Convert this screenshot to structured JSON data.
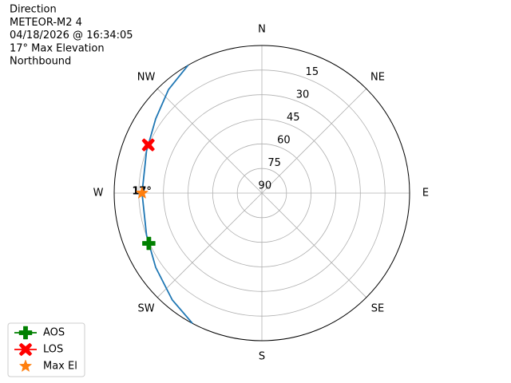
{
  "chart_data": {
    "type": "polar",
    "title_lines": [
      "Direction",
      "METEOR-M2 4",
      "04/18/2026 @ 16:34:05",
      "17° Max Elevation",
      "Northbound"
    ],
    "theta_ticks": [
      {
        "value": 0,
        "label": "N"
      },
      {
        "value": 45,
        "label": "NE"
      },
      {
        "value": 90,
        "label": "E"
      },
      {
        "value": 135,
        "label": "SE"
      },
      {
        "value": 180,
        "label": "S"
      },
      {
        "value": 225,
        "label": "SW"
      },
      {
        "value": 270,
        "label": "W"
      },
      {
        "value": 315,
        "label": "NW"
      }
    ],
    "rlim": [
      90,
      0
    ],
    "rticks": [
      15,
      30,
      45,
      60,
      75,
      90
    ],
    "grid": true,
    "track": {
      "color": "#1f77b4",
      "azimuth": [
        208,
        220,
        235,
        250,
        270,
        290,
        305,
        318,
        330
      ],
      "elevation": [
        0,
        5,
        11,
        15.2,
        17,
        15.2,
        11,
        5,
        0
      ]
    },
    "markers": [
      {
        "name": "AOS",
        "color": "#008000",
        "marker": "plus",
        "azimuth": 246,
        "elevation": 14.6
      },
      {
        "name": "LOS",
        "color": "#ff0000",
        "marker": "x",
        "azimuth": 293,
        "elevation": 14.8
      },
      {
        "name": "Max El",
        "color": "#ff7f0e",
        "marker": "star",
        "azimuth": 270,
        "elevation": 17
      }
    ],
    "annotation": "17°",
    "legend": "lower left"
  }
}
